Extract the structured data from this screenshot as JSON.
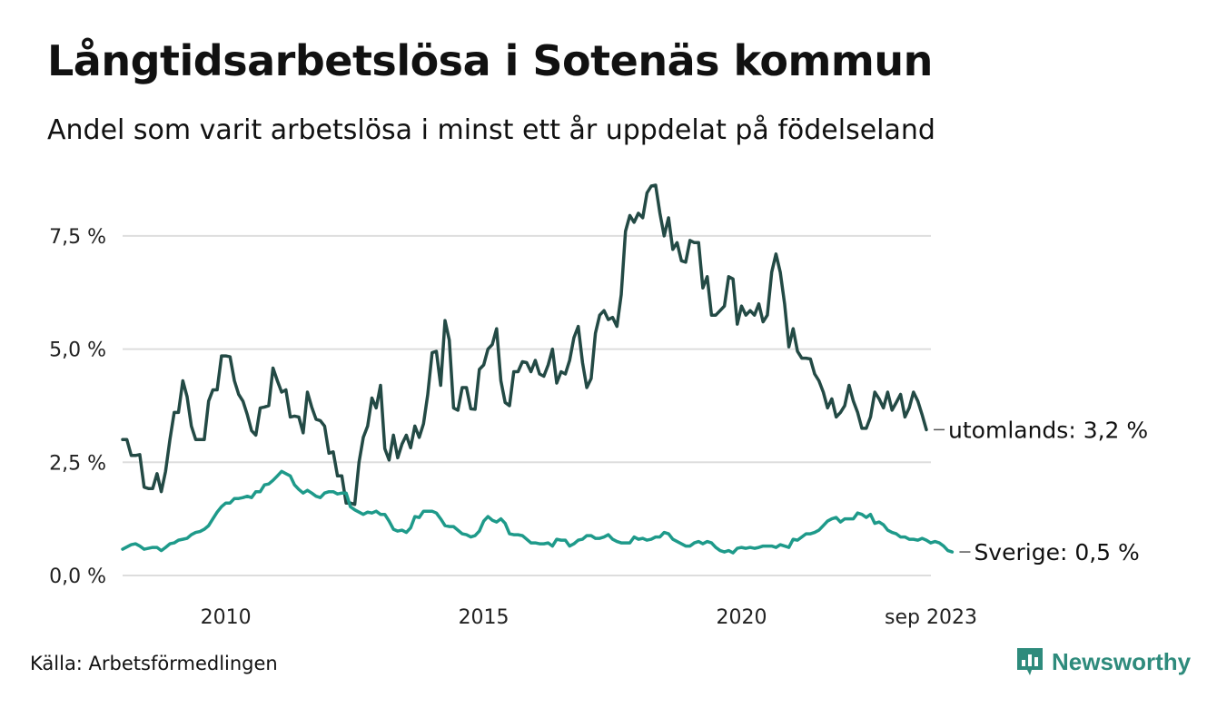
{
  "title": "Långtidsarbetslösa i Sotenäs kommun",
  "subtitle": "Andel som varit arbetslösa i minst ett år uppdelat på födelseland",
  "source": "Källa: Arbetsförmedlingen",
  "brand": "Newsworthy",
  "colors": {
    "utomlands": "#234a45",
    "sverige": "#1e9a8a",
    "grid": "#dddddd",
    "brand": "#2e8b7c"
  },
  "chart_data": {
    "type": "line",
    "title": "Långtidsarbetslösa i Sotenäs kommun",
    "xlabel": "",
    "ylabel": "",
    "x_start": 2008.0,
    "x_step": 0.08333,
    "xlim": [
      2008.0,
      2023.67
    ],
    "ylim": [
      0,
      8.7
    ],
    "y_ticks": [
      0,
      2.5,
      5.0,
      7.5
    ],
    "y_tick_labels": [
      "0,0 %",
      "2,5 %",
      "5,0 %",
      "7,5 %"
    ],
    "x_ticks": [
      2010,
      2015,
      2020,
      2023.67
    ],
    "x_tick_labels": [
      "2010",
      "2015",
      "2020",
      "sep 2023"
    ],
    "series": [
      {
        "name": "utomlands",
        "end_label": "utomlands: 3,2 %",
        "color": "#234a45",
        "values": [
          3.0,
          3.0,
          2.65,
          2.65,
          2.67,
          1.95,
          1.92,
          1.92,
          2.25,
          1.85,
          2.3,
          3.0,
          3.6,
          3.6,
          4.3,
          3.95,
          3.3,
          3.0,
          3.0,
          3.0,
          3.85,
          4.1,
          4.1,
          4.85,
          4.85,
          4.83,
          4.3,
          4.0,
          3.85,
          3.55,
          3.2,
          3.1,
          3.7,
          3.72,
          3.75,
          4.58,
          4.3,
          4.05,
          4.1,
          3.5,
          3.52,
          3.5,
          3.15,
          4.05,
          3.72,
          3.45,
          3.42,
          3.3,
          2.7,
          2.73,
          2.2,
          2.2,
          1.6,
          1.6,
          1.57,
          2.5,
          3.05,
          3.3,
          3.92,
          3.7,
          4.2,
          2.8,
          2.55,
          3.1,
          2.6,
          2.9,
          3.1,
          2.82,
          3.3,
          3.05,
          3.35,
          4.0,
          4.92,
          4.95,
          4.2,
          5.63,
          5.2,
          3.7,
          3.65,
          4.15,
          4.15,
          3.68,
          3.67,
          4.55,
          4.65,
          5.0,
          5.1,
          5.45,
          4.3,
          3.82,
          3.75,
          4.5,
          4.5,
          4.72,
          4.7,
          4.5,
          4.75,
          4.45,
          4.4,
          4.65,
          5.0,
          4.25,
          4.5,
          4.45,
          4.75,
          5.25,
          5.5,
          4.7,
          4.15,
          4.35,
          5.35,
          5.75,
          5.85,
          5.65,
          5.7,
          5.5,
          6.2,
          7.6,
          7.95,
          7.8,
          8.0,
          7.9,
          8.45,
          8.6,
          8.62,
          8.0,
          7.5,
          7.9,
          7.2,
          7.35,
          6.95,
          6.92,
          7.4,
          7.35,
          7.35,
          6.35,
          6.6,
          5.75,
          5.75,
          5.85,
          5.95,
          6.6,
          6.55,
          5.55,
          5.95,
          5.75,
          5.85,
          5.75,
          6.0,
          5.6,
          5.75,
          6.7,
          7.1,
          6.7,
          6.0,
          5.05,
          5.45,
          4.95,
          4.8,
          4.8,
          4.78,
          4.45,
          4.3,
          4.05,
          3.7,
          3.9,
          3.5,
          3.6,
          3.75,
          4.2,
          3.85,
          3.6,
          3.25,
          3.25,
          3.5,
          4.05,
          3.9,
          3.7,
          4.05,
          3.65,
          3.82,
          4.0,
          3.5,
          3.7,
          4.05,
          3.85,
          3.55,
          3.22
        ]
      },
      {
        "name": "Sverige",
        "end_label": "Sverige: 0,5 %",
        "color": "#1e9a8a",
        "values": [
          0.58,
          0.63,
          0.68,
          0.7,
          0.65,
          0.58,
          0.6,
          0.62,
          0.62,
          0.55,
          0.62,
          0.7,
          0.72,
          0.78,
          0.8,
          0.82,
          0.9,
          0.95,
          0.97,
          1.02,
          1.1,
          1.25,
          1.4,
          1.52,
          1.6,
          1.6,
          1.7,
          1.7,
          1.72,
          1.75,
          1.72,
          1.85,
          1.85,
          2.0,
          2.02,
          2.1,
          2.2,
          2.3,
          2.25,
          2.2,
          2.0,
          1.9,
          1.82,
          1.88,
          1.82,
          1.75,
          1.72,
          1.82,
          1.85,
          1.85,
          1.8,
          1.82,
          1.82,
          1.52,
          1.45,
          1.4,
          1.35,
          1.4,
          1.38,
          1.42,
          1.35,
          1.35,
          1.2,
          1.02,
          0.98,
          1.0,
          0.95,
          1.05,
          1.3,
          1.28,
          1.42,
          1.42,
          1.42,
          1.38,
          1.25,
          1.1,
          1.08,
          1.08,
          1.0,
          0.92,
          0.9,
          0.85,
          0.88,
          0.98,
          1.2,
          1.3,
          1.22,
          1.18,
          1.25,
          1.15,
          0.92,
          0.9,
          0.9,
          0.88,
          0.8,
          0.72,
          0.72,
          0.7,
          0.7,
          0.72,
          0.65,
          0.8,
          0.78,
          0.78,
          0.65,
          0.7,
          0.78,
          0.8,
          0.88,
          0.88,
          0.82,
          0.82,
          0.85,
          0.9,
          0.8,
          0.75,
          0.72,
          0.72,
          0.72,
          0.85,
          0.8,
          0.82,
          0.78,
          0.8,
          0.85,
          0.85,
          0.95,
          0.92,
          0.8,
          0.75,
          0.7,
          0.65,
          0.65,
          0.72,
          0.75,
          0.7,
          0.75,
          0.72,
          0.62,
          0.55,
          0.52,
          0.55,
          0.5,
          0.6,
          0.62,
          0.6,
          0.62,
          0.6,
          0.62,
          0.65,
          0.65,
          0.65,
          0.62,
          0.68,
          0.65,
          0.62,
          0.8,
          0.78,
          0.85,
          0.92,
          0.92,
          0.95,
          1.0,
          1.1,
          1.2,
          1.25,
          1.28,
          1.18,
          1.25,
          1.25,
          1.25,
          1.38,
          1.35,
          1.28,
          1.35,
          1.15,
          1.18,
          1.12,
          1.0,
          0.95,
          0.92,
          0.85,
          0.85,
          0.8,
          0.8,
          0.78,
          0.82,
          0.78,
          0.72,
          0.75,
          0.72,
          0.65,
          0.55,
          0.52
        ]
      }
    ]
  }
}
